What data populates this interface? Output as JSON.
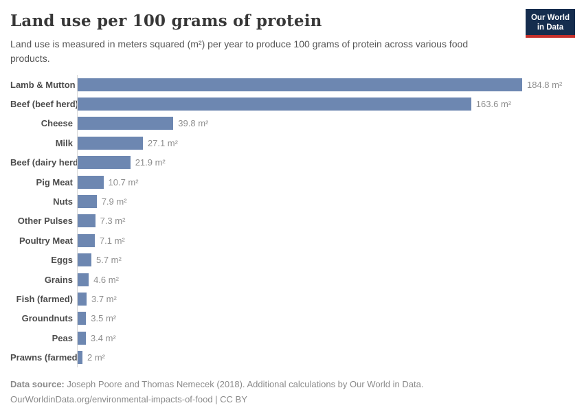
{
  "header": {
    "title": "Land use per 100 grams of protein",
    "subtitle": "Land use is measured in meters squared (m²) per year to produce 100 grams of protein across various food products.",
    "logo": {
      "line1": "Our World",
      "line2": "in Data",
      "background_color": "#152d4e",
      "accent_color": "#c5302b"
    }
  },
  "chart_data": {
    "type": "bar",
    "orientation": "horizontal",
    "title": "Land use per 100 grams of protein",
    "xlabel": "",
    "ylabel": "",
    "unit": "m²",
    "xlim": [
      0,
      185
    ],
    "grid": false,
    "legend": "none",
    "bar_color": "#6d87b1",
    "axis_line_color": "#d9d9d9",
    "categories": [
      "Lamb & Mutton",
      "Beef (beef herd)",
      "Cheese",
      "Milk",
      "Beef (dairy herd)",
      "Pig Meat",
      "Nuts",
      "Other Pulses",
      "Poultry Meat",
      "Eggs",
      "Grains",
      "Fish (farmed)",
      "Groundnuts",
      "Peas",
      "Prawns (farmed)"
    ],
    "values": [
      184.8,
      163.6,
      39.8,
      27.1,
      21.9,
      10.7,
      7.9,
      7.3,
      7.1,
      5.7,
      4.6,
      3.7,
      3.5,
      3.4,
      2
    ],
    "value_labels": [
      "184.8 m²",
      "163.6 m²",
      "39.8 m²",
      "27.1 m²",
      "21.9 m²",
      "10.7 m²",
      "7.9 m²",
      "7.3 m²",
      "7.1 m²",
      "5.7 m²",
      "4.6 m²",
      "3.7 m²",
      "3.5 m²",
      "3.4 m²",
      "2 m²"
    ]
  },
  "footer": {
    "source_label": "Data source:",
    "source_text": " Joseph Poore and Thomas Nemecek (2018). Additional calculations by Our World in Data.",
    "license_text": "OurWorldinData.org/environmental-impacts-of-food | CC BY"
  }
}
